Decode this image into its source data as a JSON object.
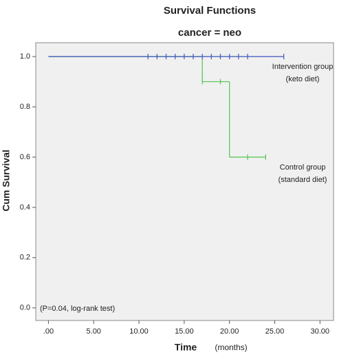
{
  "chart_data": {
    "type": "km-step",
    "title": "Survival Functions",
    "subtitle": "cancer = neo",
    "x_label": "Time",
    "x_unit": "(months)",
    "y_label": "Cum Survival",
    "annotation": "(P=0.04, log-rank test)",
    "xlim": [
      -1.4,
      31.5
    ],
    "ylim": [
      -0.05,
      1.055
    ],
    "xticks": [
      {
        "value": 0,
        "label": ".00"
      },
      {
        "value": 5,
        "label": "5.00"
      },
      {
        "value": 10,
        "label": "10.00"
      },
      {
        "value": 15,
        "label": "15.00"
      },
      {
        "value": 20,
        "label": "20.00"
      },
      {
        "value": 25,
        "label": "25.00"
      },
      {
        "value": 30,
        "label": "30.00"
      }
    ],
    "yticks": [
      {
        "value": 0,
        "label": "0.0"
      },
      0.2,
      0.4,
      0.6,
      0.8,
      {
        "value": 1,
        "label": "1.0"
      }
    ],
    "series": [
      {
        "name": "Intervention group",
        "note": "(keto diet)",
        "color": "#4b5fc0",
        "x": [
          0,
          26
        ],
        "values": [
          1,
          1
        ],
        "censor_x": [
          11,
          12,
          13,
          14,
          15,
          16,
          17,
          18,
          19,
          20,
          21,
          22,
          26
        ],
        "censor_values": [
          1,
          1,
          1,
          1,
          1,
          1,
          1,
          1,
          1,
          1,
          1,
          1,
          1
        ]
      },
      {
        "name": "Control group",
        "note": "(standard diet)",
        "color": "#5cc75c",
        "x": [
          0,
          17,
          20,
          24
        ],
        "values": [
          1,
          0.9,
          0.6,
          0.6
        ],
        "censor_x": [
          17,
          19,
          22,
          24
        ],
        "censor_values": [
          0.9,
          0.9,
          0.6,
          0.6
        ]
      }
    ]
  }
}
